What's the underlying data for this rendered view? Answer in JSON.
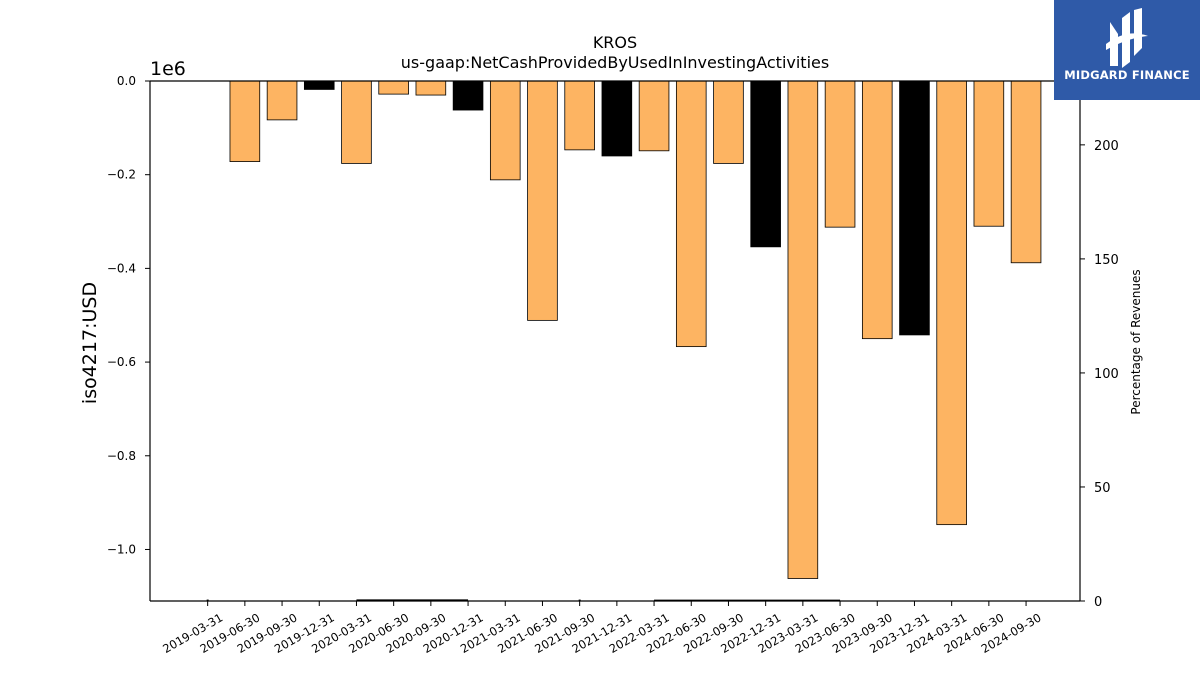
{
  "chart_data": {
    "type": "bar",
    "title": "KROS",
    "subtitle": "us-gaap:NetCashProvidedByUsedInInvestingActivities",
    "ylabel": "iso4217:USD",
    "y_offset_label": "1e6",
    "y2label": "Percentage of Revenues",
    "ylim": [
      -1.11,
      0.0
    ],
    "y2lim": [
      0,
      228
    ],
    "y_ticks": [
      "0.0",
      "−0.2",
      "−0.4",
      "−0.6",
      "−0.8",
      "−1.0"
    ],
    "y_tick_values": [
      0.0,
      -0.2,
      -0.4,
      -0.6,
      -0.8,
      -1.0
    ],
    "y2_ticks": [
      "0",
      "50",
      "100",
      "150",
      "200"
    ],
    "y2_tick_values": [
      0,
      50,
      100,
      150,
      200
    ],
    "categories": [
      "2019-03-31",
      "2019-06-30",
      "2019-09-30",
      "2019-12-31",
      "2020-03-31",
      "2020-06-30",
      "2020-09-30",
      "2020-12-31",
      "2021-03-31",
      "2021-06-30",
      "2021-09-30",
      "2021-12-31",
      "2022-03-31",
      "2022-06-30",
      "2022-09-30",
      "2022-12-31",
      "2023-03-31",
      "2023-06-30",
      "2023-09-30",
      "2023-12-31",
      "2024-03-31",
      "2024-06-30",
      "2024-09-30"
    ],
    "values": [
      null,
      -0.172,
      -0.083,
      -0.018,
      -0.176,
      -0.028,
      -0.03,
      -0.062,
      -0.211,
      -0.511,
      -0.147,
      -0.16,
      -0.149,
      -0.567,
      -0.176,
      -0.354,
      -1.062,
      -0.312,
      -0.55,
      -0.542,
      -0.947,
      -0.31,
      -0.388
    ],
    "bar_kind": [
      "none",
      "quarter",
      "quarter",
      "annual",
      "quarter",
      "quarter",
      "quarter",
      "annual",
      "quarter",
      "quarter",
      "quarter",
      "annual",
      "quarter",
      "quarter",
      "quarter",
      "annual",
      "quarter",
      "quarter",
      "quarter",
      "annual",
      "quarter",
      "quarter",
      "quarter"
    ],
    "pct_of_revenues": [
      0.3,
      null,
      null,
      null,
      0.4,
      0.4,
      0.4,
      0.4,
      null,
      null,
      0.3,
      null,
      0.3,
      0.3,
      0.3,
      0.3,
      0.3,
      0.3,
      null,
      null,
      null,
      null,
      null
    ],
    "colors": {
      "quarter": "#fdb462",
      "annual": "#000000",
      "line": "#000000"
    }
  },
  "logo": {
    "text": "MIDGARD FINANCE",
    "icon": "midgard-logo-icon"
  }
}
